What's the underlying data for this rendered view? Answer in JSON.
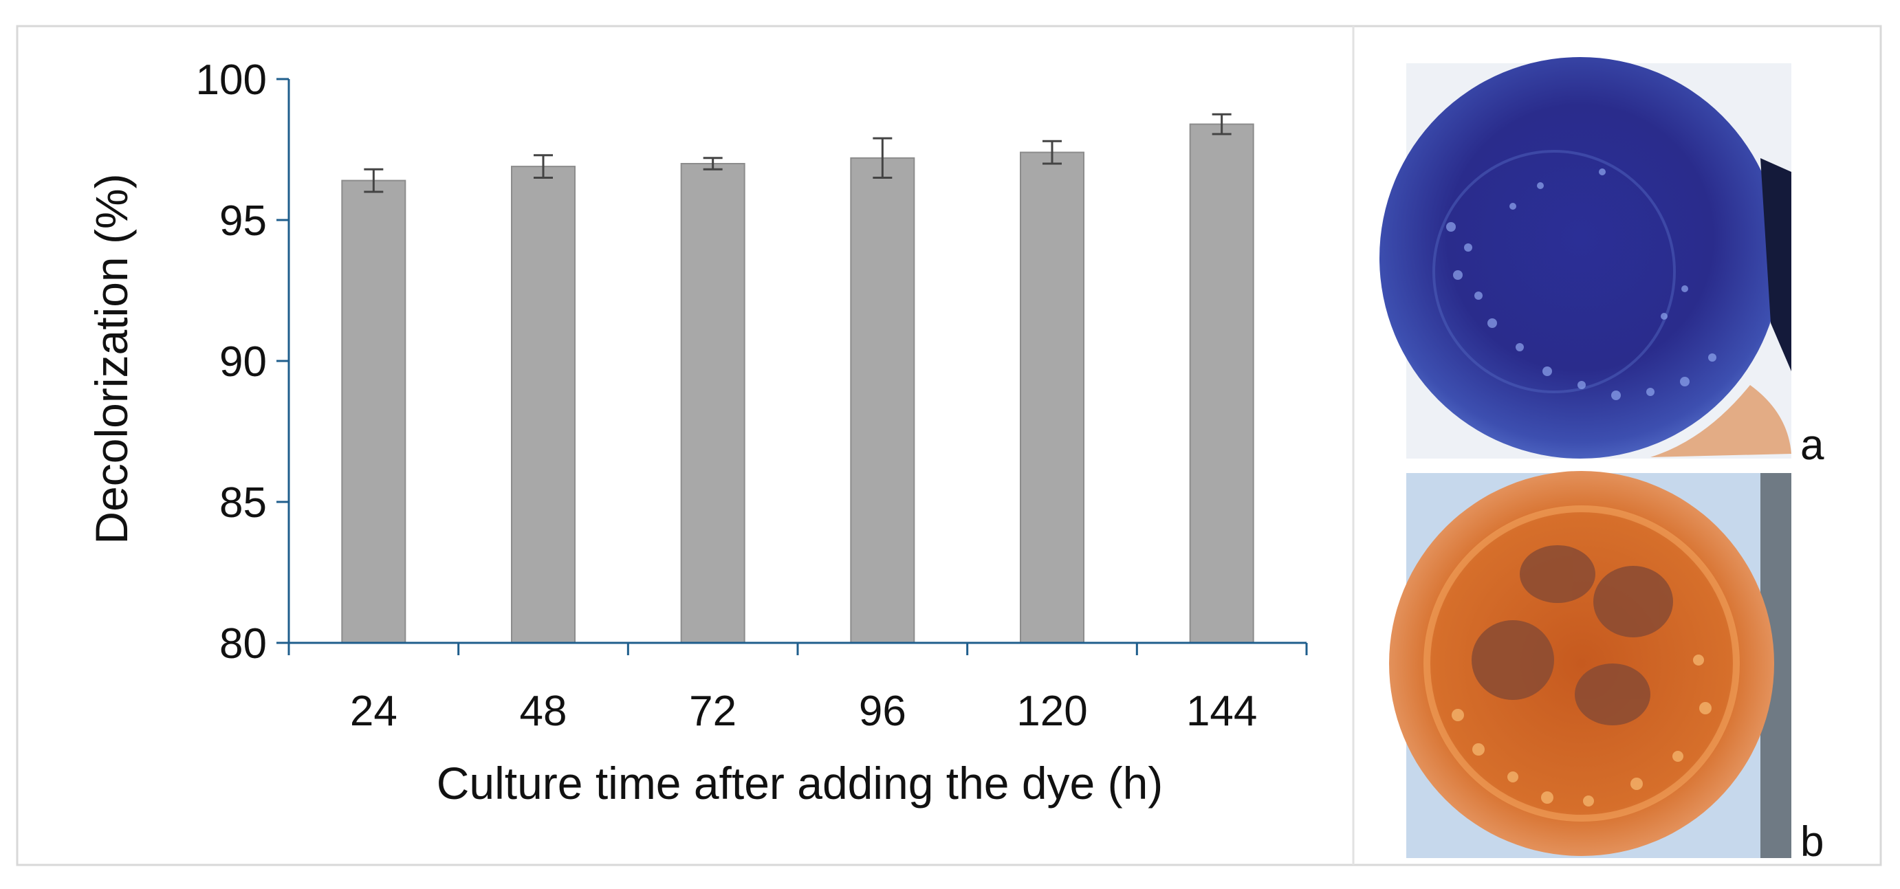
{
  "chart_data": {
    "type": "bar",
    "categories": [
      "24",
      "48",
      "72",
      "96",
      "120",
      "144"
    ],
    "values": [
      96.4,
      96.9,
      97.0,
      97.2,
      97.4,
      98.4
    ],
    "error": [
      0.4,
      0.4,
      0.2,
      0.7,
      0.4,
      0.35
    ],
    "xlabel": "Culture time after adding the dye (h)",
    "ylabel": "Decolorization (%)",
    "ylim": [
      80,
      100
    ],
    "yticks": [
      "80",
      "85",
      "90",
      "95",
      "100"
    ],
    "bar_color": "#a8a8a8",
    "grid": false,
    "legend": "none"
  },
  "photos": {
    "a": {
      "label": "a",
      "dye_color": "#2f2f9e"
    },
    "b": {
      "label": "b",
      "dye_color": "#d0692a"
    }
  }
}
